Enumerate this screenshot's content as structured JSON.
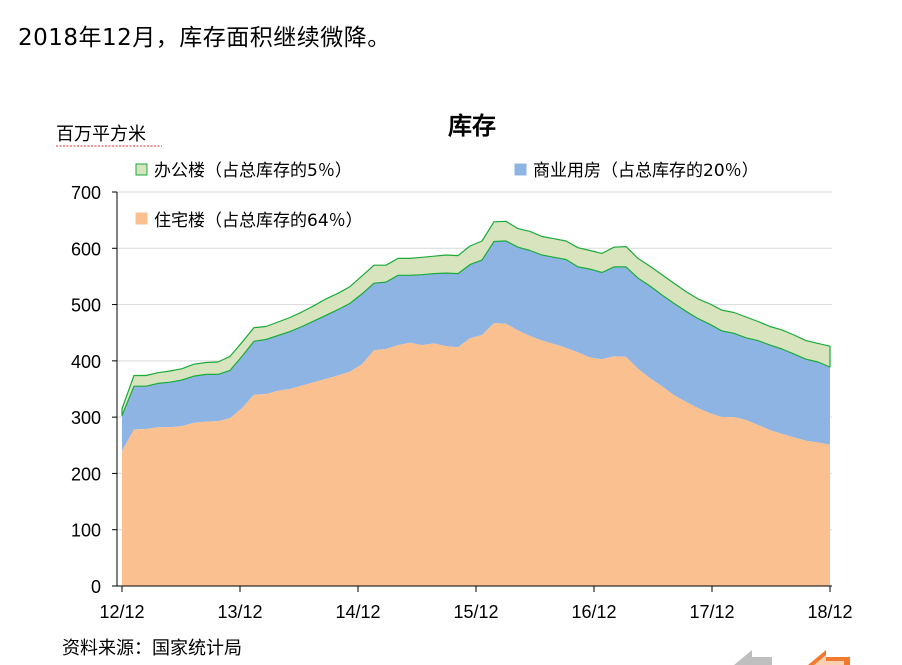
{
  "headline": "2018年12月，库存面积继续微降。",
  "source": "资料来源：国家统计局",
  "chart_data": {
    "type": "area",
    "stacked": true,
    "title": "库存",
    "ylabel": "百万平方米",
    "ylim": [
      0,
      700
    ],
    "yticks": [
      0,
      100,
      200,
      300,
      400,
      500,
      600,
      700
    ],
    "x_tick_labels": [
      "12/12",
      "13/12",
      "14/12",
      "15/12",
      "16/12",
      "17/12",
      "18/12"
    ],
    "grid": true,
    "legend_position": "top",
    "colors": {
      "office": "#d7e4bd",
      "office_edge": "#1aab3a",
      "commercial": "#8eb4e3",
      "residential": "#fac090"
    },
    "series": [
      {
        "key": "residential",
        "name": "住宅楼（占总库存的64％）",
        "values": [
          240,
          278,
          279,
          282,
          282,
          284,
          290,
          292,
          293,
          298,
          316,
          340,
          341,
          347,
          350,
          356,
          362,
          368,
          374,
          381,
          394,
          419,
          421,
          428,
          432,
          428,
          431,
          426,
          424,
          440,
          446,
          467,
          466,
          454,
          444,
          436,
          430,
          423,
          415,
          406,
          403,
          408,
          407,
          386,
          369,
          355,
          339,
          327,
          316,
          307,
          300,
          300,
          295,
          286,
          277,
          270,
          264,
          258,
          255,
          251
        ]
      },
      {
        "key": "commercial",
        "name": "商业用房（占总库存的20％）",
        "values": [
          63,
          77,
          76,
          78,
          80,
          82,
          83,
          84,
          83,
          85,
          92,
          95,
          97,
          98,
          102,
          105,
          109,
          113,
          117,
          121,
          125,
          119,
          119,
          124,
          120,
          125,
          124,
          130,
          131,
          131,
          133,
          145,
          147,
          148,
          152,
          152,
          154,
          157,
          152,
          157,
          154,
          159,
          160,
          161,
          164,
          162,
          163,
          161,
          159,
          158,
          153,
          149,
          146,
          150,
          151,
          151,
          148,
          145,
          143,
          138
        ]
      },
      {
        "key": "office",
        "name": "办公楼（占总库存的5％）",
        "values": [
          12,
          19,
          19,
          19,
          20,
          20,
          21,
          21,
          22,
          25,
          25,
          24,
          23,
          24,
          25,
          26,
          27,
          29,
          29,
          30,
          32,
          32,
          30,
          30,
          30,
          31,
          31,
          32,
          32,
          33,
          34,
          35,
          35,
          33,
          34,
          33,
          33,
          33,
          34,
          33,
          34,
          35,
          36,
          35,
          35,
          36,
          36,
          35,
          35,
          36,
          37,
          37,
          37,
          34,
          33,
          34,
          34,
          33,
          33,
          37
        ]
      }
    ]
  }
}
